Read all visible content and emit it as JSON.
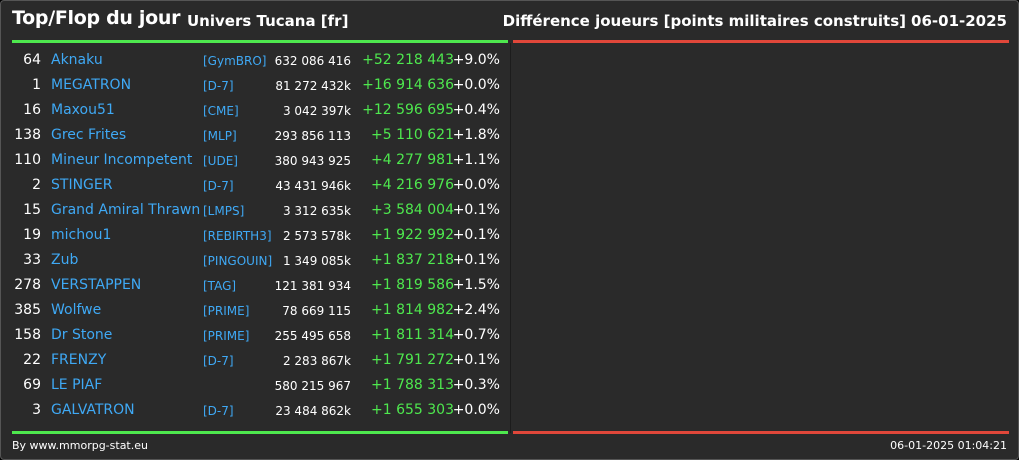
{
  "header": {
    "title": "Top/Flop du jour",
    "universe": "Univers Tucana [fr]",
    "metric": "Différence joueurs [points militaires construits]",
    "date": "06-01-2025"
  },
  "colors": {
    "gain": "#4ee84e",
    "loss": "#e0473a",
    "link": "#3fa9f5"
  },
  "top": [
    {
      "rank": "64",
      "name": "Aknaku",
      "tag": "[GymBRO]",
      "points": "632 086 416",
      "diff": "+52 218 443",
      "pct": "+9.0%"
    },
    {
      "rank": "1",
      "name": "MEGATRON",
      "tag": "[D-7]",
      "points": "81 272 432k",
      "diff": "+16 914 636",
      "pct": "+0.0%"
    },
    {
      "rank": "16",
      "name": "Maxou51",
      "tag": "[CME]",
      "points": "3 042 397k",
      "diff": "+12 596 695",
      "pct": "+0.4%"
    },
    {
      "rank": "138",
      "name": "Grec Frites",
      "tag": "[MLP]",
      "points": "293 856 113",
      "diff": "+5 110 621",
      "pct": "+1.8%"
    },
    {
      "rank": "110",
      "name": "Mineur Incompetent",
      "tag": "[UDE]",
      "points": "380 943 925",
      "diff": "+4 277 981",
      "pct": "+1.1%"
    },
    {
      "rank": "2",
      "name": "STINGER",
      "tag": "[D-7]",
      "points": "43 431 946k",
      "diff": "+4 216 976",
      "pct": "+0.0%"
    },
    {
      "rank": "15",
      "name": "Grand Amiral Thrawn",
      "tag": "[LMPS]",
      "points": "3 312 635k",
      "diff": "+3 584 004",
      "pct": "+0.1%"
    },
    {
      "rank": "19",
      "name": "michou1",
      "tag": "[REBIRTH3]",
      "points": "2 573 578k",
      "diff": "+1 922 992",
      "pct": "+0.1%"
    },
    {
      "rank": "33",
      "name": "Zub",
      "tag": "[PINGOUIN]",
      "points": "1 349 085k",
      "diff": "+1 837 218",
      "pct": "+0.1%"
    },
    {
      "rank": "278",
      "name": "VERSTAPPEN",
      "tag": "[TAG]",
      "points": "121 381 934",
      "diff": "+1 819 586",
      "pct": "+1.5%"
    },
    {
      "rank": "385",
      "name": "Wolfwe",
      "tag": "[PRIME]",
      "points": "78 669 115",
      "diff": "+1 814 982",
      "pct": "+2.4%"
    },
    {
      "rank": "158",
      "name": "Dr Stone",
      "tag": "[PRIME]",
      "points": "255 495 658",
      "diff": "+1 811 314",
      "pct": "+0.7%"
    },
    {
      "rank": "22",
      "name": "FRENZY",
      "tag": "[D-7]",
      "points": "2 283 867k",
      "diff": "+1 791 272",
      "pct": "+0.1%"
    },
    {
      "rank": "69",
      "name": "LE PIAF",
      "tag": "",
      "points": "580 215 967",
      "diff": "+1 788 313",
      "pct": "+0.3%"
    },
    {
      "rank": "3",
      "name": "GALVATRON",
      "tag": "[D-7]",
      "points": "23 484 862k",
      "diff": "+1 655 303",
      "pct": "+0.0%"
    }
  ],
  "footer": {
    "source": "By www.mmorpg-stat.eu",
    "timestamp": "06-01-2025 01:04:21"
  }
}
